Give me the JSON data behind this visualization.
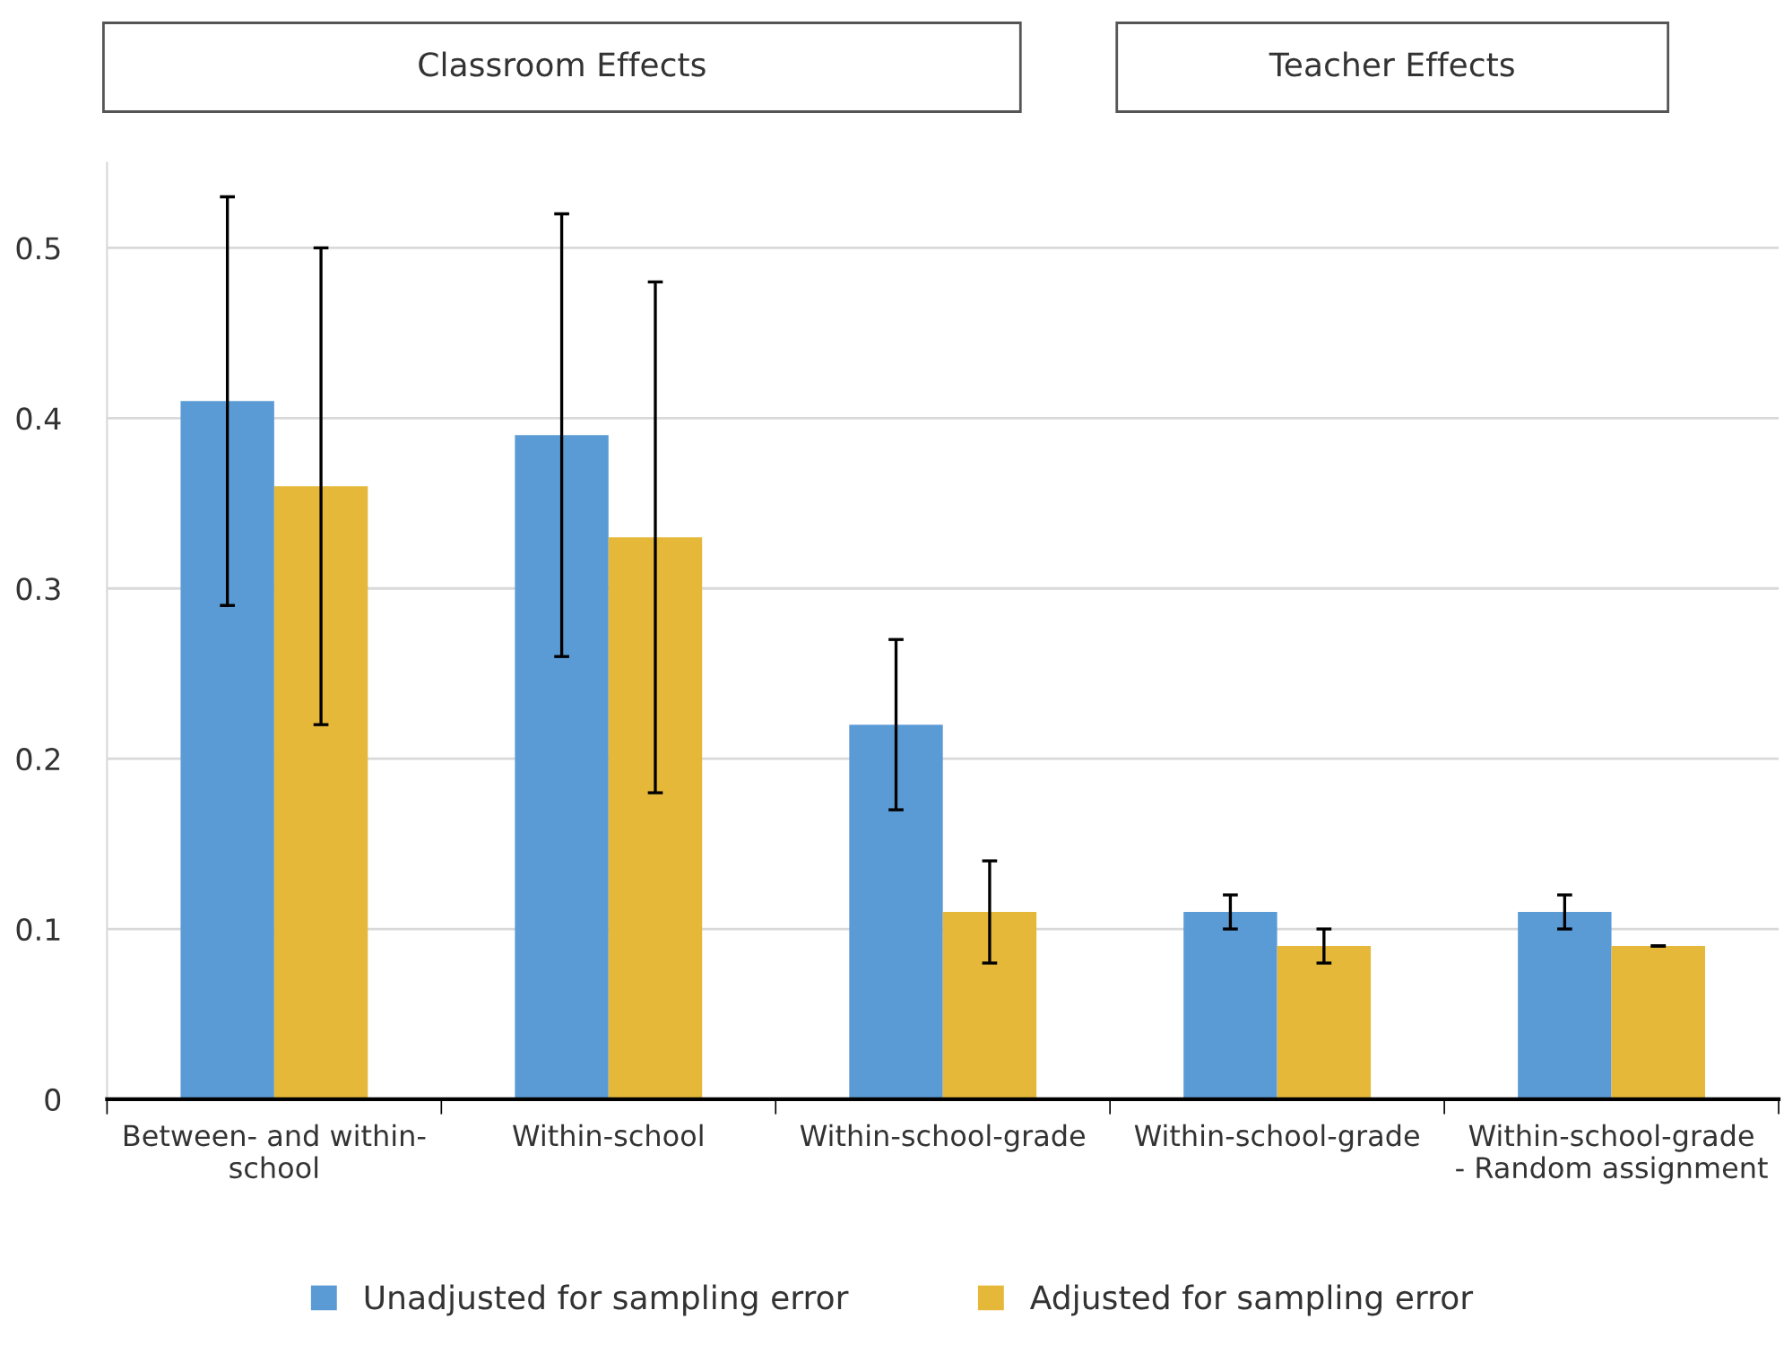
{
  "chart_data": {
    "type": "bar",
    "categories": [
      "Between- and within-\nschool",
      "Within-school",
      "Within-school-grade",
      "Within-school-grade",
      "Within-school-grade\n- Random assignment"
    ],
    "series": [
      {
        "name": "Unadjusted for sampling error",
        "color": "#5b9bd5",
        "values": [
          0.41,
          0.39,
          0.22,
          0.11,
          0.11
        ],
        "errors": [
          0.12,
          0.13,
          0.05,
          0.01,
          0.01
        ]
      },
      {
        "name": "Adjusted for sampling error",
        "color": "#e6b83a",
        "values": [
          0.36,
          0.33,
          0.11,
          0.09,
          0.09
        ],
        "errors": [
          0.14,
          0.15,
          0.03,
          0.01,
          0
        ]
      }
    ],
    "ylim": [
      0,
      0.55
    ],
    "yticks": [
      0,
      0.1,
      0.2,
      0.3,
      0.4,
      0.5
    ],
    "grid": "y",
    "legend": "bottom",
    "annotations": [
      "Classroom Effects",
      "Teacher Effects"
    ]
  }
}
